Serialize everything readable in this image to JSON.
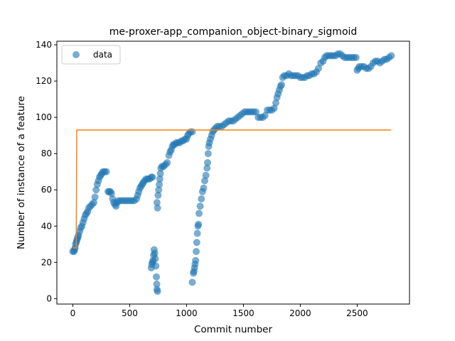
{
  "chart_data": {
    "type": "scatter",
    "title": "me-proxer-app_companion_object-binary_sigmoid",
    "xlabel": "Commit number",
    "ylabel": "Number of instance of a feature",
    "xlim": [
      -140,
      2960
    ],
    "ylim": [
      -3,
      142
    ],
    "xticks": [
      0,
      500,
      1000,
      1500,
      2000,
      2500
    ],
    "yticks": [
      0,
      20,
      40,
      60,
      80,
      100,
      120,
      140
    ],
    "grid": false,
    "legend": {
      "position": "top-left",
      "entries": [
        "data"
      ]
    },
    "colors": {
      "data": "#1f77b4",
      "fit": "#ff7f0e"
    },
    "series": [
      {
        "name": "data",
        "kind": "scatter",
        "points": [
          [
            0,
            26
          ],
          [
            10,
            26
          ],
          [
            15,
            27
          ],
          [
            20,
            28
          ],
          [
            25,
            30
          ],
          [
            30,
            31
          ],
          [
            35,
            32
          ],
          [
            40,
            33
          ],
          [
            45,
            34
          ],
          [
            50,
            35
          ],
          [
            60,
            37
          ],
          [
            70,
            39
          ],
          [
            80,
            40
          ],
          [
            90,
            42
          ],
          [
            100,
            44
          ],
          [
            110,
            46
          ],
          [
            120,
            47
          ],
          [
            130,
            48
          ],
          [
            140,
            50
          ],
          [
            155,
            51
          ],
          [
            170,
            52
          ],
          [
            185,
            53
          ],
          [
            195,
            56
          ],
          [
            205,
            60
          ],
          [
            215,
            63
          ],
          [
            225,
            65
          ],
          [
            235,
            67
          ],
          [
            245,
            68
          ],
          [
            255,
            69
          ],
          [
            265,
            70
          ],
          [
            280,
            70
          ],
          [
            295,
            70
          ],
          [
            310,
            59
          ],
          [
            320,
            59
          ],
          [
            330,
            59
          ],
          [
            340,
            58
          ],
          [
            350,
            55
          ],
          [
            360,
            53
          ],
          [
            370,
            52
          ],
          [
            380,
            51
          ],
          [
            390,
            53
          ],
          [
            400,
            54
          ],
          [
            420,
            54
          ],
          [
            440,
            54
          ],
          [
            460,
            54
          ],
          [
            480,
            54
          ],
          [
            500,
            54
          ],
          [
            520,
            54
          ],
          [
            540,
            54
          ],
          [
            560,
            55
          ],
          [
            570,
            57
          ],
          [
            580,
            59
          ],
          [
            590,
            61
          ],
          [
            600,
            62
          ],
          [
            610,
            63
          ],
          [
            620,
            64
          ],
          [
            630,
            65
          ],
          [
            645,
            66
          ],
          [
            660,
            66
          ],
          [
            675,
            66
          ],
          [
            690,
            67
          ],
          [
            700,
            67
          ],
          [
            690,
            17
          ],
          [
            695,
            19
          ],
          [
            700,
            20
          ],
          [
            705,
            21
          ],
          [
            710,
            24
          ],
          [
            715,
            27
          ],
          [
            720,
            25
          ],
          [
            725,
            22
          ],
          [
            730,
            18
          ],
          [
            735,
            12
          ],
          [
            738,
            8
          ],
          [
            740,
            5
          ],
          [
            745,
            4
          ],
          [
            740,
            53
          ],
          [
            745,
            50
          ],
          [
            750,
            57
          ],
          [
            755,
            60
          ],
          [
            760,
            63
          ],
          [
            765,
            66
          ],
          [
            770,
            69
          ],
          [
            775,
            72
          ],
          [
            785,
            73
          ],
          [
            800,
            73
          ],
          [
            815,
            74
          ],
          [
            830,
            75
          ],
          [
            845,
            79
          ],
          [
            855,
            81
          ],
          [
            865,
            82
          ],
          [
            875,
            84
          ],
          [
            885,
            85
          ],
          [
            895,
            85
          ],
          [
            910,
            86
          ],
          [
            925,
            86
          ],
          [
            940,
            86
          ],
          [
            955,
            87
          ],
          [
            970,
            87
          ],
          [
            985,
            88
          ],
          [
            1000,
            88
          ],
          [
            1010,
            90
          ],
          [
            1020,
            91
          ],
          [
            1035,
            92
          ],
          [
            1050,
            92
          ],
          [
            1050,
            9
          ],
          [
            1060,
            14
          ],
          [
            1065,
            15
          ],
          [
            1070,
            17
          ],
          [
            1075,
            19
          ],
          [
            1080,
            21
          ],
          [
            1085,
            26
          ],
          [
            1090,
            31
          ],
          [
            1095,
            36
          ],
          [
            1100,
            40
          ],
          [
            1105,
            41
          ],
          [
            1110,
            47
          ],
          [
            1120,
            51
          ],
          [
            1130,
            55
          ],
          [
            1140,
            59
          ],
          [
            1150,
            61
          ],
          [
            1160,
            65
          ],
          [
            1170,
            68
          ],
          [
            1180,
            72
          ],
          [
            1185,
            75
          ],
          [
            1190,
            80
          ],
          [
            1195,
            84
          ],
          [
            1200,
            86
          ],
          [
            1210,
            88
          ],
          [
            1220,
            90
          ],
          [
            1230,
            92
          ],
          [
            1240,
            93
          ],
          [
            1255,
            94
          ],
          [
            1270,
            95
          ],
          [
            1290,
            95
          ],
          [
            1310,
            95
          ],
          [
            1330,
            96
          ],
          [
            1350,
            97
          ],
          [
            1370,
            98
          ],
          [
            1390,
            98
          ],
          [
            1410,
            98
          ],
          [
            1430,
            99
          ],
          [
            1450,
            100
          ],
          [
            1470,
            101
          ],
          [
            1490,
            102
          ],
          [
            1510,
            103
          ],
          [
            1530,
            103
          ],
          [
            1550,
            103
          ],
          [
            1570,
            103
          ],
          [
            1590,
            103
          ],
          [
            1610,
            103
          ],
          [
            1630,
            100
          ],
          [
            1650,
            100
          ],
          [
            1670,
            100
          ],
          [
            1690,
            101
          ],
          [
            1710,
            104
          ],
          [
            1730,
            104
          ],
          [
            1750,
            104
          ],
          [
            1770,
            105
          ],
          [
            1785,
            108
          ],
          [
            1795,
            111
          ],
          [
            1805,
            113
          ],
          [
            1815,
            115
          ],
          [
            1825,
            117
          ],
          [
            1835,
            118
          ],
          [
            1845,
            122
          ],
          [
            1860,
            123
          ],
          [
            1880,
            123
          ],
          [
            1900,
            124
          ],
          [
            1920,
            123
          ],
          [
            1940,
            123
          ],
          [
            1960,
            123
          ],
          [
            1980,
            123
          ],
          [
            2000,
            122
          ],
          [
            2020,
            122
          ],
          [
            2040,
            122
          ],
          [
            2060,
            123
          ],
          [
            2080,
            123
          ],
          [
            2100,
            124
          ],
          [
            2120,
            124
          ],
          [
            2140,
            125
          ],
          [
            2160,
            127
          ],
          [
            2180,
            130
          ],
          [
            2200,
            131
          ],
          [
            2215,
            133
          ],
          [
            2230,
            134
          ],
          [
            2250,
            134
          ],
          [
            2270,
            134
          ],
          [
            2290,
            134
          ],
          [
            2310,
            134
          ],
          [
            2330,
            135
          ],
          [
            2350,
            135
          ],
          [
            2370,
            134
          ],
          [
            2390,
            133
          ],
          [
            2410,
            133
          ],
          [
            2430,
            133
          ],
          [
            2450,
            133
          ],
          [
            2470,
            133
          ],
          [
            2490,
            133
          ],
          [
            2500,
            126
          ],
          [
            2510,
            127
          ],
          [
            2520,
            128
          ],
          [
            2540,
            128
          ],
          [
            2560,
            128
          ],
          [
            2580,
            127
          ],
          [
            2600,
            127
          ],
          [
            2620,
            128
          ],
          [
            2640,
            130
          ],
          [
            2660,
            131
          ],
          [
            2680,
            131
          ],
          [
            2700,
            130
          ],
          [
            2720,
            131
          ],
          [
            2740,
            132
          ],
          [
            2760,
            132
          ],
          [
            2780,
            133
          ],
          [
            2800,
            134
          ]
        ]
      },
      {
        "kind": "line",
        "points": [
          [
            0,
            28
          ],
          [
            25,
            28
          ],
          [
            30,
            28
          ],
          [
            35,
            93
          ],
          [
            500,
            93
          ],
          [
            1000,
            93
          ],
          [
            1500,
            93
          ],
          [
            2000,
            93
          ],
          [
            2500,
            93
          ],
          [
            2800,
            93
          ]
        ]
      }
    ]
  }
}
